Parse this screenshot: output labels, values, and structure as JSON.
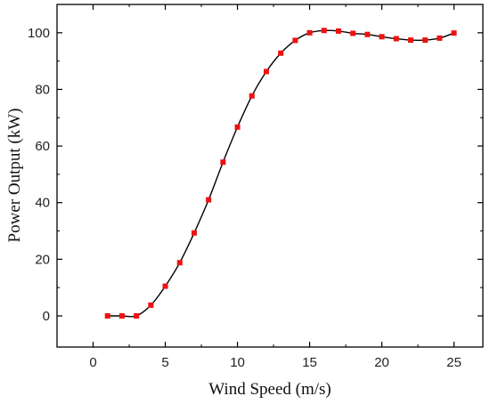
{
  "chart_data": {
    "type": "line",
    "xlabel": "Wind Speed (m/s)",
    "ylabel": "Power Output (kW)",
    "xlim": [
      -2.5,
      27
    ],
    "ylim": [
      -11,
      110
    ],
    "xticks": [
      0,
      5,
      10,
      15,
      20,
      25
    ],
    "yticks": [
      0,
      20,
      40,
      60,
      80,
      100
    ],
    "grid": false,
    "legend": "none",
    "series": [
      {
        "x": [
          1,
          2,
          3,
          4,
          5,
          6,
          7,
          8,
          9,
          10,
          11,
          12,
          13,
          14,
          15,
          16,
          17,
          18,
          19,
          20,
          21,
          22,
          23,
          24,
          25
        ],
        "values": [
          0,
          0,
          0,
          3.8,
          10.5,
          18.8,
          29.3,
          41,
          54.3,
          66.7,
          77.7,
          86.3,
          92.8,
          97.3,
          100,
          100.8,
          100.6,
          99.8,
          99.4,
          98.6,
          97.9,
          97.4,
          97.4,
          98.1,
          99.9
        ],
        "line_color": "#000000",
        "marker_color": "#ee1111"
      }
    ]
  }
}
